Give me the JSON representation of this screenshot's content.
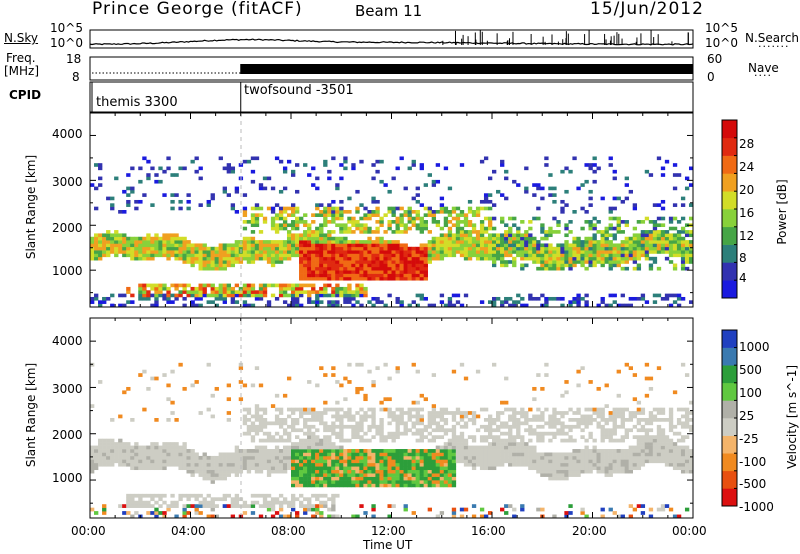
{
  "header": {
    "station": "Prince George (fitACF)",
    "beam": "Beam 11",
    "date": "15/Jun/2012"
  },
  "top_panels": {
    "nsky_label": "N.Sky",
    "nsky_ticks": [
      "10^5",
      "10^0"
    ],
    "nsearch_label": "N.Search",
    "nsearch_ticks": [
      "10^5",
      "10^0"
    ],
    "freq_label": "Freq.",
    "freq_unit": "[MHz]",
    "freq_ticks": [
      "18",
      "8"
    ],
    "nave_label": "Nave",
    "nave_ticks": [
      "60",
      "0"
    ],
    "cpid_label": "CPID",
    "cpid_modes": [
      {
        "name": "themis 3300",
        "start_hour": 0
      },
      {
        "name": "twofsound -3501",
        "start_hour": 6
      }
    ]
  },
  "x_axis": {
    "label": "Time UT",
    "ticks": [
      "00:00",
      "04:00",
      "08:00",
      "12:00",
      "16:00",
      "20:00",
      "00:00"
    ]
  },
  "chart_data": [
    {
      "type": "heatmap",
      "name": "power",
      "x_range_hours": [
        0,
        24
      ],
      "y_label": "Slant Range [km]",
      "y_ticks": [
        "4000",
        "3000",
        "2000",
        "1000"
      ],
      "ylim": [
        180,
        4500
      ],
      "colorbar_label": "Power [dB]",
      "colorbar_ticks": [
        "28",
        "24",
        "20",
        "16",
        "12",
        "8",
        "4"
      ],
      "colorscale": [
        "#1a1adf",
        "#3232b0",
        "#2c7f7a",
        "#46a546",
        "#88d13a",
        "#d2dd28",
        "#f0a020",
        "#f06a14",
        "#e02a10",
        "#d40a0a"
      ],
      "features": [
        {
          "desc": "main echo band",
          "t_start": 0,
          "t_end": 24,
          "range_km": [
            1200,
            1700
          ],
          "power_db": [
            12,
            22
          ]
        },
        {
          "desc": "strong echo region",
          "t_start": 8.5,
          "t_end": 13.5,
          "range_km": [
            800,
            1600
          ],
          "power_db": [
            20,
            30
          ]
        },
        {
          "desc": "lower band",
          "t_start": 1.5,
          "t_end": 5,
          "range_km": [
            450,
            700
          ],
          "power_db": [
            12,
            24
          ]
        },
        {
          "desc": "upper scatter",
          "t_start": 1,
          "t_end": 24,
          "range_km": [
            2200,
            3500
          ],
          "power_db": [
            4,
            10
          ]
        }
      ]
    },
    {
      "type": "heatmap",
      "name": "velocity",
      "x_range_hours": [
        0,
        24
      ],
      "y_label": "Slant Range [km]",
      "y_ticks": [
        "4000",
        "3000",
        "2000",
        "1000"
      ],
      "ylim": [
        180,
        4500
      ],
      "colorbar_label": "Velocity [m s^-1]",
      "colorbar_ticks": [
        "1000",
        "500",
        "100",
        "25",
        "-25",
        "-100",
        "-500",
        "-1000"
      ],
      "colorscale": [
        "#dc1010",
        "#e85010",
        "#f08a20",
        "#f4b46a",
        "#cdcdc4",
        "#b0b0a8",
        "#60c840",
        "#2c9e3a",
        "#3a7ab0",
        "#2040c0"
      ],
      "features": [
        {
          "desc": "ground scatter band",
          "t_start": 0,
          "t_end": 24,
          "range_km": [
            1100,
            1600
          ],
          "velocity": [
            -25,
            25
          ]
        },
        {
          "desc": "green/orange ionospheric region",
          "t_start": 8,
          "t_end": 14,
          "range_km": [
            900,
            1700
          ],
          "velocity": [
            -100,
            100
          ]
        },
        {
          "desc": "upper grey scatter",
          "t_start": 6,
          "t_end": 24,
          "range_km": [
            1800,
            2700
          ],
          "velocity": [
            -25,
            25
          ]
        }
      ]
    }
  ]
}
